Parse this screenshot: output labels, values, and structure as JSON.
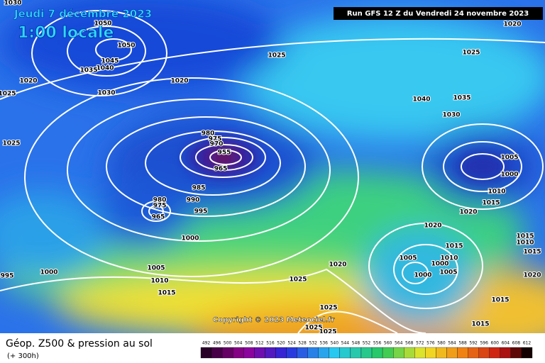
{
  "header": {
    "date": "Jeudi 7 décembre 2023",
    "time": "1:00 locale",
    "run": "Run GFS 12 Z du Vendredi 24 novembre 2023"
  },
  "copyright": "Copyright © 2023 Meteociel.fr",
  "legend": {
    "title": "Géop. Z500 & pression au sol",
    "lead": "(+ 300h)",
    "scale": [
      492,
      496,
      500,
      504,
      508,
      512,
      516,
      520,
      524,
      528,
      532,
      536,
      540,
      544,
      548,
      552,
      556,
      560,
      564,
      568,
      572,
      576,
      580,
      584,
      588,
      592,
      596,
      600,
      604,
      608,
      612
    ]
  },
  "isobar_labels": [
    1030,
    1050,
    1050,
    1045,
    1040,
    1035,
    1030,
    1020,
    1025,
    1025,
    1020,
    1025,
    1025,
    1020,
    1040,
    1035,
    1030,
    1005,
    1000,
    1010,
    1015,
    1020,
    1020,
    980,
    975,
    970,
    955,
    965,
    985,
    990,
    995,
    980,
    975,
    965,
    1000,
    1005,
    1010,
    1015,
    1000,
    995,
    1020,
    1025,
    1025,
    1025,
    1025,
    1005,
    1000,
    1000,
    1010,
    1015,
    1005,
    1015,
    1015,
    1020,
    1015,
    1015,
    1010
  ]
}
